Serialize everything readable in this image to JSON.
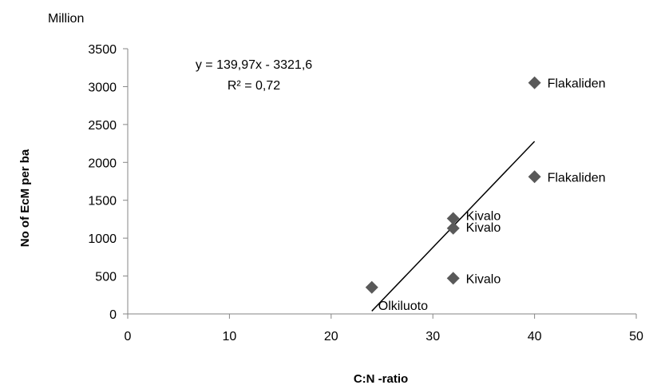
{
  "chart_data": {
    "type": "scatter",
    "title": "",
    "xlabel": "C:N -ratio",
    "ylabel": "No of EcM per ba",
    "y_unit": "Million",
    "xlim": [
      0,
      50
    ],
    "ylim": [
      0,
      3500
    ],
    "x_ticks": [
      0,
      10,
      20,
      30,
      40,
      50
    ],
    "y_ticks": [
      0,
      500,
      1000,
      1500,
      2000,
      2500,
      3000,
      3500
    ],
    "grid": false,
    "marker": "diamond",
    "marker_color": "#595959",
    "points": [
      {
        "x": 24,
        "y": 350,
        "label": "Olkiluoto"
      },
      {
        "x": 32,
        "y": 1260,
        "label": "Kivalo"
      },
      {
        "x": 32,
        "y": 1130,
        "label": "Kivalo"
      },
      {
        "x": 32,
        "y": 470,
        "label": "Kivalo"
      },
      {
        "x": 40,
        "y": 3050,
        "label": "Flakaliden"
      },
      {
        "x": 40,
        "y": 1810,
        "label": "Flakaliden"
      }
    ],
    "trendline": {
      "type": "linear",
      "slope": 139.97,
      "intercept": -3321.6,
      "x_range": [
        24,
        40
      ],
      "equation": "y = 139,97x - 3321,6",
      "r_squared": "R² = 0,72"
    }
  }
}
